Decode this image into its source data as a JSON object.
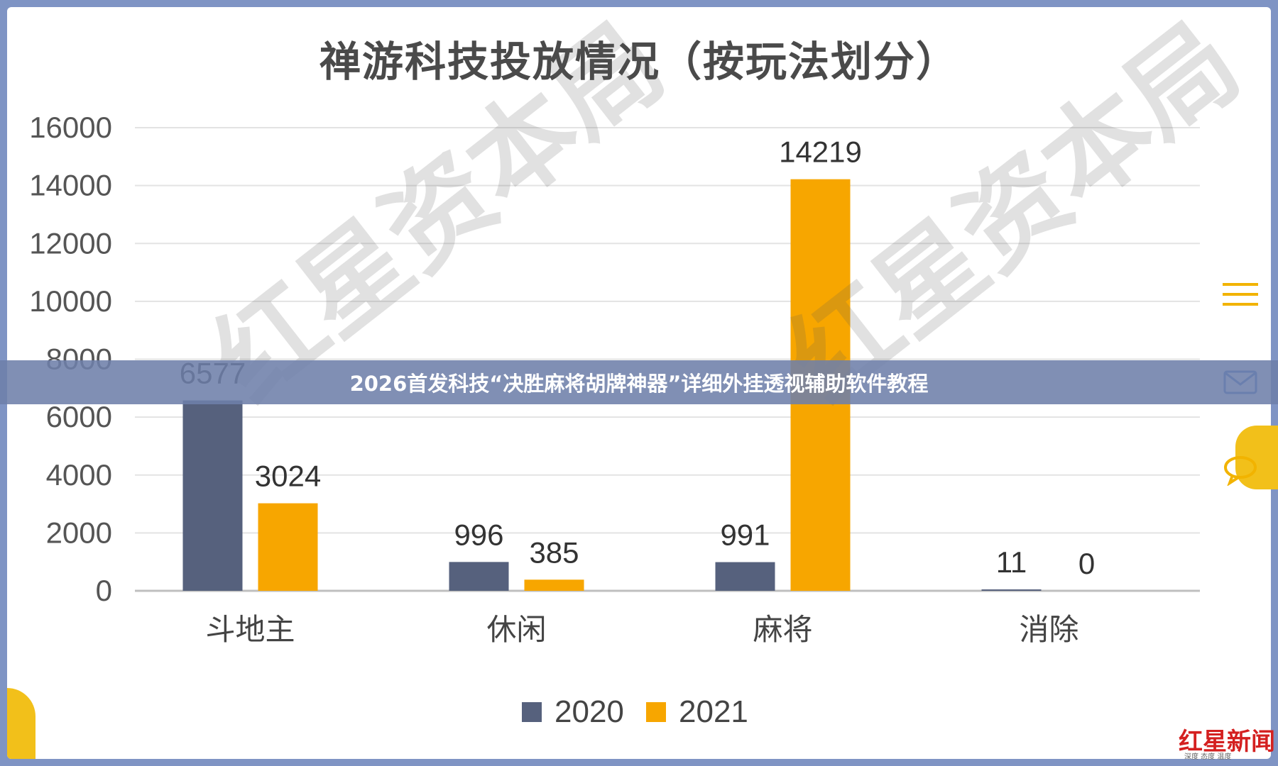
{
  "chart_data": {
    "type": "bar",
    "title": "禅游科技投放情况（按玩法划分）",
    "categories": [
      "斗地主",
      "休闲",
      "麻将",
      "消除"
    ],
    "series": [
      {
        "name": "2020",
        "values": [
          6577,
          996,
          991,
          11
        ],
        "color": "#56617d"
      },
      {
        "name": "2021",
        "values": [
          3024,
          385,
          14219,
          0
        ],
        "color": "#f7a600"
      }
    ],
    "ylim": [
      0,
      16000
    ],
    "yticks": [
      0,
      2000,
      4000,
      6000,
      8000,
      10000,
      12000,
      14000,
      16000
    ],
    "grid": true,
    "legend": "bottom"
  },
  "watermark": "红星资本局",
  "banner": "2026首发科技“决胜麻将胡牌神器”详细外挂透视辅助软件教程",
  "icons": {
    "menu": "hamburger-icon",
    "mail": "mail-icon",
    "comment": "chat-bubble-icon"
  },
  "brand": {
    "logo": "红星新闻",
    "tagline": "深度 态度 温度"
  }
}
